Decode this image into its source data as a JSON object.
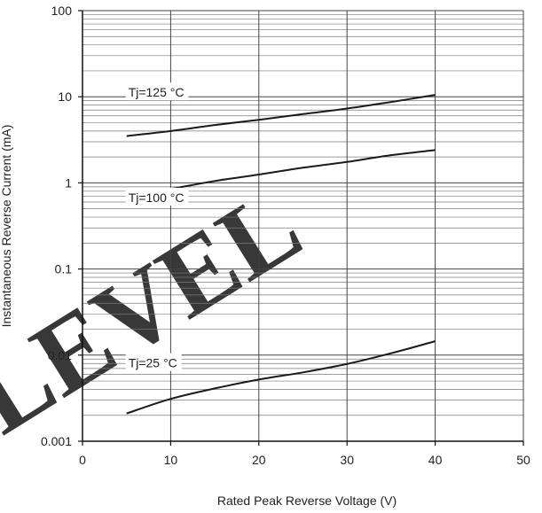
{
  "chart_data": {
    "type": "line",
    "title": "",
    "xlabel": "Rated Peak Reverse Voltage (V)",
    "ylabel": "Instantaneous Reverse Current (mA)",
    "xlim": [
      0,
      50
    ],
    "ylim": [
      0.001,
      100
    ],
    "y_scale": "log",
    "grid": true,
    "x_ticks": [
      0,
      10,
      20,
      30,
      40,
      50
    ],
    "x_tick_labels": [
      "0",
      "10",
      "20",
      "30",
      "40",
      "50"
    ],
    "y_ticks": [
      0.001,
      0.01,
      0.1,
      1,
      10,
      100
    ],
    "y_tick_labels": [
      "0.001",
      "0.01",
      "0.1",
      "1",
      "10",
      "100"
    ],
    "series": [
      {
        "name": "Tj=125 °C",
        "color": "#1a1a1a",
        "x": [
          5,
          10,
          15,
          20,
          25,
          30,
          35,
          40
        ],
        "y": [
          3.5,
          4.0,
          4.7,
          5.4,
          6.3,
          7.3,
          8.7,
          10.5
        ]
      },
      {
        "name": "Tj=100 °C",
        "color": "#1a1a1a",
        "x": [
          5,
          10,
          15,
          20,
          25,
          30,
          35,
          40
        ],
        "y": [
          0.7,
          0.85,
          1.05,
          1.25,
          1.5,
          1.75,
          2.1,
          2.4
        ]
      },
      {
        "name": "Tj=25 °C",
        "color": "#1a1a1a",
        "x": [
          5,
          10,
          15,
          20,
          25,
          30,
          35,
          40
        ],
        "y": [
          0.0021,
          0.0031,
          0.0041,
          0.0052,
          0.0063,
          0.0079,
          0.0105,
          0.0145
        ]
      }
    ],
    "annotations": [
      {
        "text": "Tj=125 °C",
        "x": 5.2,
        "y": 10
      },
      {
        "text": "Tj=100 °C",
        "x": 5.2,
        "y": 0.6
      },
      {
        "text": "Tj=25 °C",
        "x": 5.2,
        "y": 0.0072
      }
    ]
  },
  "watermark": {
    "text": "LEVEL",
    "color": "#e8231b"
  }
}
